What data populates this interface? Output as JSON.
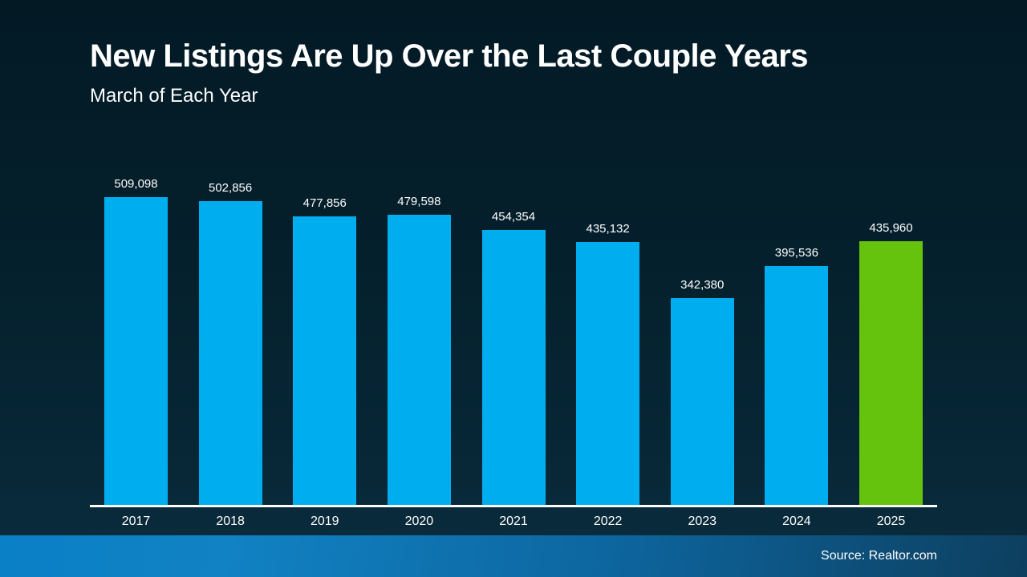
{
  "slide": {
    "title": "New Listings Are Up Over the Last Couple Years",
    "subtitle": "March of Each Year",
    "source": "Source: Realtor.com"
  },
  "colors": {
    "bar": "#00AEEF",
    "highlight": "#66C30D",
    "background_top": "#031A25",
    "background_bottom": "#0A2D3E",
    "footer_left": "#0A80C6",
    "footer_right": "#0D3F5F",
    "axis": "#FFFFFF",
    "text": "#FFFFFF"
  },
  "chart_data": {
    "type": "bar",
    "title": "New Listings Are Up Over the Last Couple Years",
    "subtitle": "March of Each Year",
    "xlabel": "",
    "ylabel": "",
    "categories": [
      "2017",
      "2018",
      "2019",
      "2020",
      "2021",
      "2022",
      "2023",
      "2024",
      "2025"
    ],
    "values": [
      509098,
      502856,
      477856,
      479598,
      454354,
      435132,
      342380,
      395536,
      435960
    ],
    "value_labels": [
      "509,098",
      "502,856",
      "477,856",
      "479,598",
      "454,354",
      "435,132",
      "342,380",
      "395,536",
      "435,960"
    ],
    "highlight_index": 8,
    "ylim": [
      0,
      509098
    ],
    "grid": false,
    "legend": false,
    "data_labels": "above-bars",
    "axis_line": "x-only"
  }
}
